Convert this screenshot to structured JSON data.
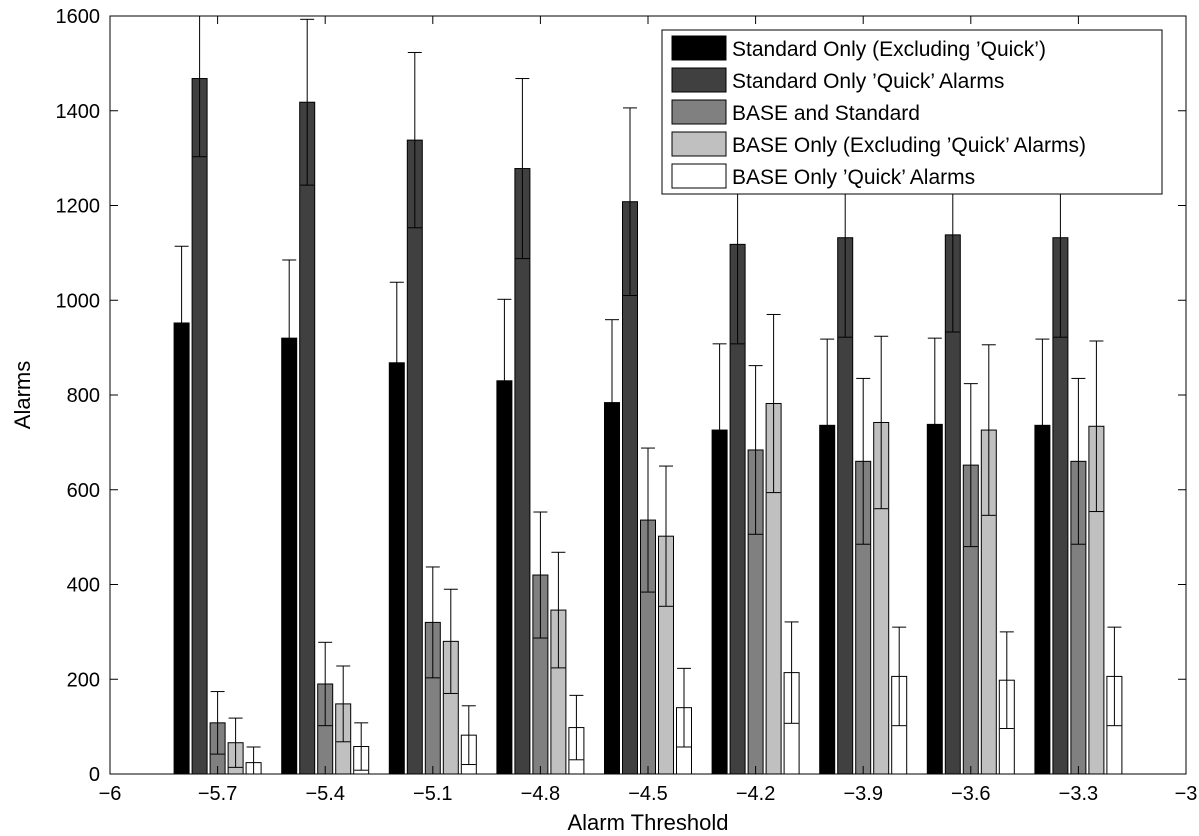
{
  "chart_data": {
    "type": "bar",
    "title": "",
    "xlabel": "Alarm Threshold",
    "ylabel": "Alarms",
    "xlim": [
      -6,
      -3
    ],
    "ylim": [
      0,
      1600
    ],
    "x_ticks": [
      "−6",
      "−5.7",
      "−5.4",
      "−5.1",
      "−4.8",
      "−4.5",
      "−4.2",
      "−3.9",
      "−3.6",
      "−3.3",
      "−3"
    ],
    "y_ticks": [
      "0",
      "200",
      "400",
      "600",
      "800",
      "1000",
      "1200",
      "1400",
      "1600"
    ],
    "categories": [
      -5.7,
      -5.4,
      -5.1,
      -4.8,
      -4.5,
      -4.2,
      -3.9,
      -3.6,
      -3.3
    ],
    "legend_position": "top-right",
    "grid": false,
    "series": [
      {
        "name": "Standard Only (Excluding ’Quick’)",
        "color": "#000000",
        "values": [
          952,
          920,
          868,
          830,
          784,
          726,
          736,
          738,
          736
        ],
        "errors": [
          162,
          165,
          170,
          172,
          175,
          182,
          182,
          182,
          182
        ]
      },
      {
        "name": "Standard Only ’Quick’ Alarms",
        "color": "#404040",
        "values": [
          1468,
          1418,
          1338,
          1278,
          1208,
          1118,
          1132,
          1138,
          1132
        ],
        "errors": [
          165,
          175,
          185,
          190,
          198,
          210,
          210,
          205,
          210
        ]
      },
      {
        "name": "BASE and Standard",
        "color": "#808080",
        "values": [
          108,
          190,
          320,
          420,
          536,
          684,
          660,
          652,
          660
        ],
        "errors": [
          66,
          88,
          117,
          133,
          152,
          178,
          175,
          172,
          175
        ]
      },
      {
        "name": "BASE Only (Excluding ’Quick’ Alarms)",
        "color": "#c0c0c0",
        "values": [
          66,
          148,
          280,
          346,
          502,
          782,
          742,
          726,
          734
        ],
        "errors": [
          52,
          80,
          110,
          122,
          148,
          188,
          182,
          180,
          180
        ]
      },
      {
        "name": "BASE Only ’Quick’ Alarms",
        "color": "#ffffff",
        "values": [
          24,
          58,
          82,
          98,
          140,
          214,
          206,
          198,
          206
        ],
        "errors": [
          33,
          50,
          62,
          68,
          83,
          107,
          104,
          102,
          104
        ]
      }
    ]
  }
}
